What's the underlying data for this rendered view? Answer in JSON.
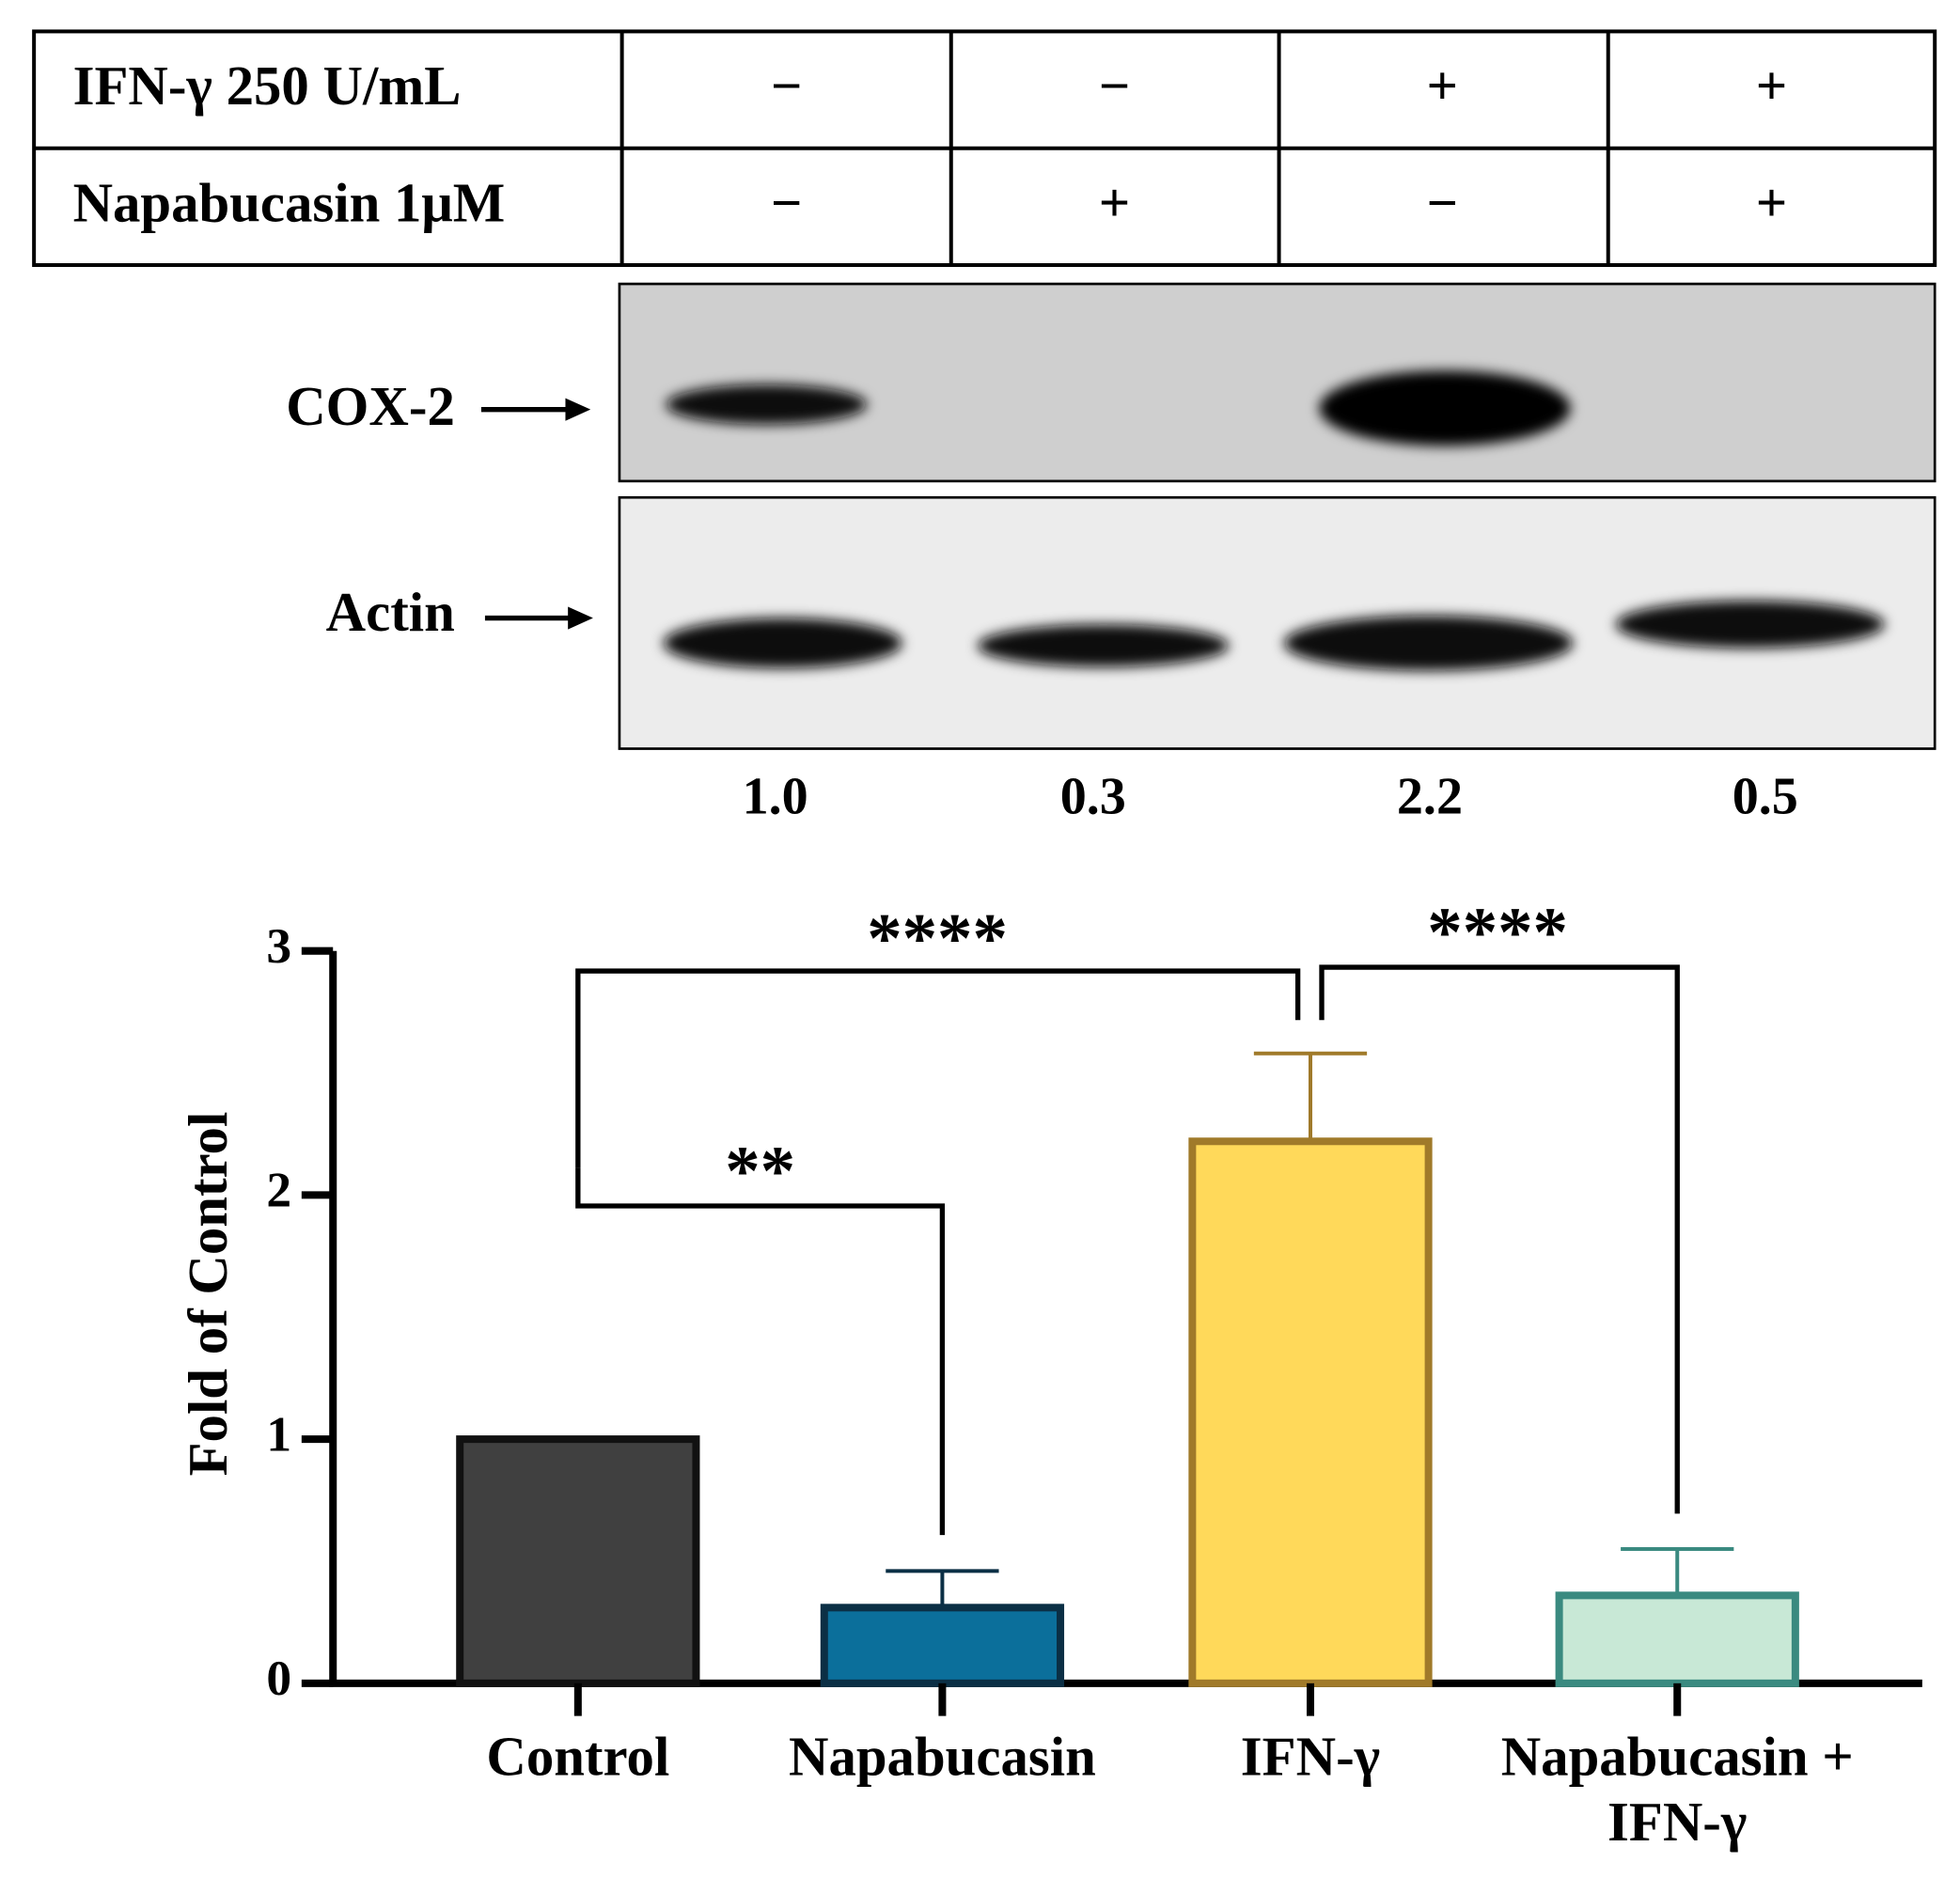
{
  "table": {
    "rows": [
      [
        "IFN-γ 250 U/mL",
        "−",
        "−",
        "+",
        "+"
      ],
      [
        "Napabucasin 1μM",
        "−",
        "+",
        "−",
        "+"
      ]
    ]
  },
  "blot": {
    "labels": [
      "COX-2",
      "Actin"
    ],
    "ratios": [
      "1.0",
      "0.3",
      "2.2",
      "0.5"
    ]
  },
  "chart_data": {
    "type": "bar",
    "ylabel": "Fold of Control",
    "categories": [
      "Control",
      "Napabucasin",
      "IFN-γ",
      "Napabucasin + IFN-γ"
    ],
    "values": [
      1.0,
      0.31,
      2.22,
      0.36
    ],
    "errors": [
      0,
      0.15,
      0.36,
      0.19
    ],
    "colors": [
      "#404040",
      "#0b6f9b",
      "#ffd95a",
      "#c8e8d6"
    ],
    "edge_colors": [
      "#111111",
      "#0b2f45",
      "#a07a2a",
      "#3a8a80"
    ],
    "ylim": [
      0,
      3
    ],
    "yticks": [
      0,
      1,
      2,
      3
    ],
    "annotations": [
      {
        "label": "**",
        "pair": [
          0,
          1
        ]
      },
      {
        "label": "****",
        "pair": [
          0,
          2
        ]
      },
      {
        "label": "****",
        "pair": [
          2,
          3
        ]
      }
    ]
  }
}
